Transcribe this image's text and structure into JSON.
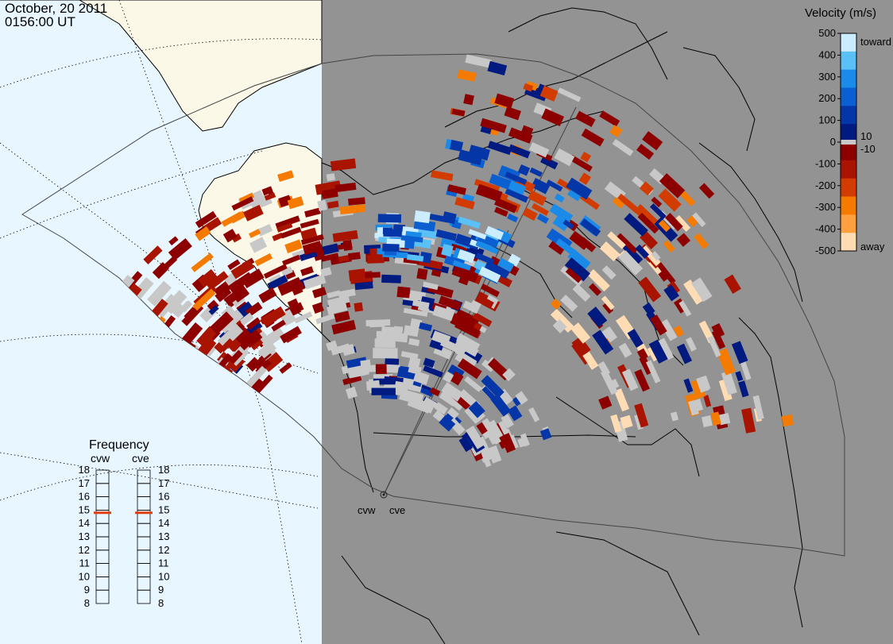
{
  "header": {
    "date": "October, 20 2011",
    "time": "0156:00 UT"
  },
  "colorbar": {
    "title": "Velocity (m/s)",
    "ticks": [
      "500",
      "400",
      "300",
      "200",
      "100",
      "0",
      "-100",
      "-200",
      "-300",
      "-400",
      "-500"
    ],
    "inner_pos": "10",
    "inner_neg": "-10",
    "toward": "toward",
    "away": "away",
    "colors": [
      "#ccecff",
      "#5ac0f5",
      "#1a8be8",
      "#0b5fd0",
      "#0536a8",
      "#001a80",
      "#8c0000",
      "#a81400",
      "#d23c00",
      "#f57a00",
      "#ffa040",
      "#ffdcb4"
    ]
  },
  "frequency": {
    "title": "Frequency",
    "radars": [
      {
        "name": "cvw",
        "value": 14.8
      },
      {
        "name": "cve",
        "value": 14.8
      }
    ],
    "scale": [
      "18",
      "17",
      "16",
      "15",
      "14",
      "13",
      "12",
      "11",
      "10",
      "9",
      "8"
    ]
  },
  "radar_sites": [
    {
      "label": "cvw"
    },
    {
      "label": "cve"
    }
  ],
  "map_colors": {
    "ocean": "#e8f6ff",
    "land_day": "#fbf8e8",
    "night": "#939393",
    "ground_scatter": "#c8c8c8"
  }
}
